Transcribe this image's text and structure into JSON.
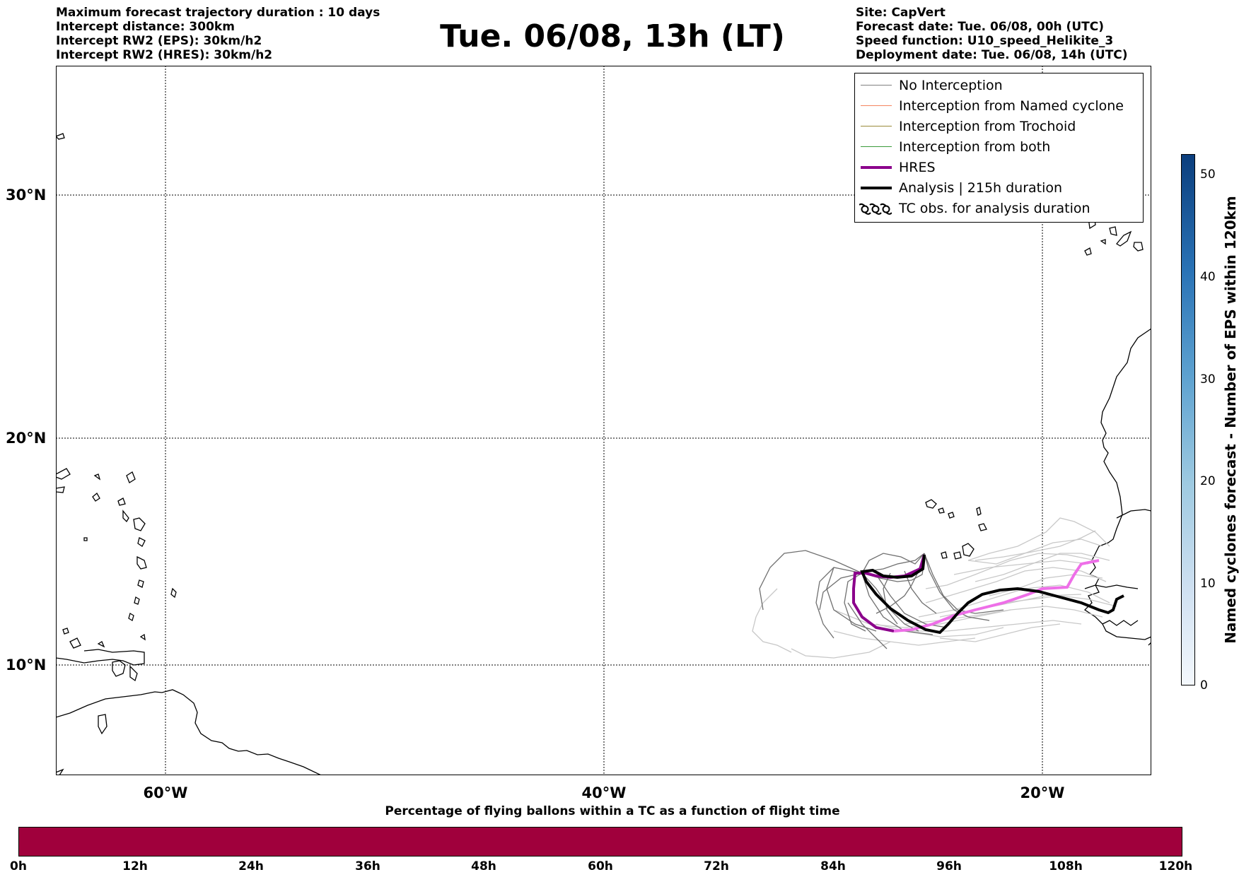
{
  "info_left": [
    "Maximum forecast trajectory duration : 10 days",
    "Intercept distance: 300km",
    "Intercept RW2 (EPS):  30km/h2",
    "Intercept RW2 (HRES): 30km/h2"
  ],
  "title": "Tue. 06/08, 13h (LT)",
  "info_right": [
    "Site: CapVert",
    "Forecast date: Tue. 06/08, 00h (UTC)",
    "Speed function: U10_speed_Helikite_3",
    "Deployment date: Tue. 06/08, 14h (UTC)"
  ],
  "map": {
    "lat_labels": [
      "30°N",
      "20°N",
      "10°N"
    ],
    "lon_labels": [
      "60°W",
      "40°W",
      "20°W"
    ]
  },
  "legend": [
    {
      "label": "No Interception",
      "color": "#808080"
    },
    {
      "label": "Interception from Named cyclone",
      "color": "#f4845f"
    },
    {
      "label": "Interception from Trochoid",
      "color": "#9a8a3a"
    },
    {
      "label": "Interception from both",
      "color": "#3a9a3a"
    },
    {
      "label": "HRES",
      "color": "#8b008b"
    },
    {
      "label": "Analysis | 215h duration",
      "color": "#000000"
    },
    {
      "label": "TC obs. for analysis duration",
      "color": "#000000",
      "icon": "cyclone-symbols"
    }
  ],
  "colorbar_right": {
    "label": "Named cyclones forecast - Number of EPS within 120km",
    "ticks": [
      "0",
      "10",
      "20",
      "30",
      "40",
      "50"
    ],
    "colors": [
      "#f4f8fd",
      "#0b3e7d"
    ]
  },
  "colorbar_bottom": {
    "title": "Percentage of flying ballons within a TC as a function of flight time",
    "ticks": [
      "0h",
      "12h",
      "24h",
      "36h",
      "48h",
      "60h",
      "72h",
      "84h",
      "96h",
      "108h",
      "120h"
    ],
    "color": "#a0003c"
  }
}
